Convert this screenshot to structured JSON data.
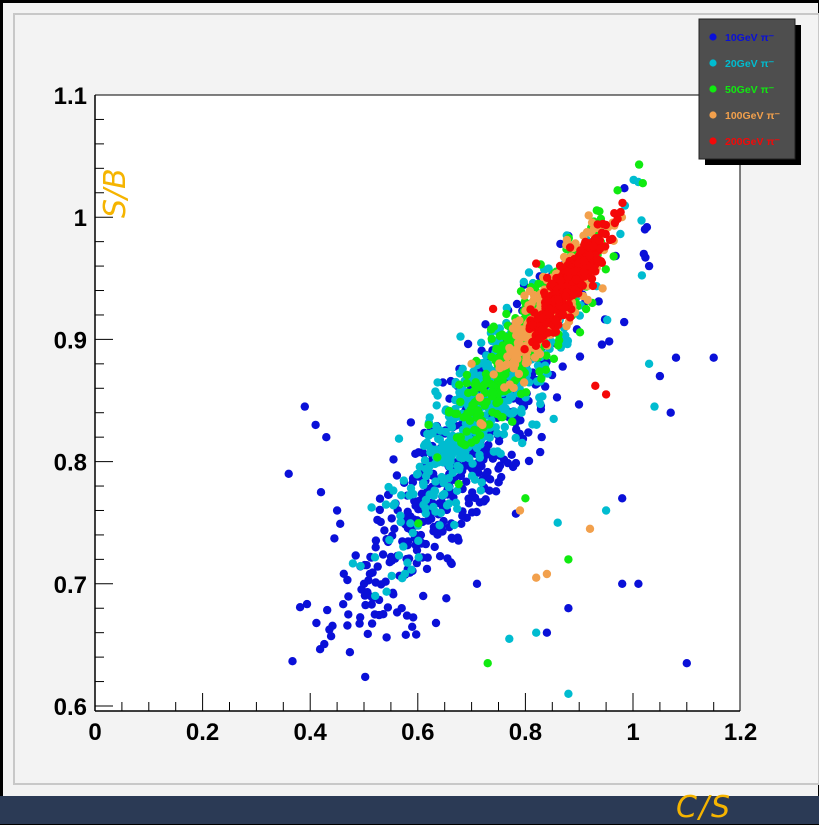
{
  "chart_data": {
    "type": "scatter",
    "xlabel": "C/S",
    "ylabel": "S/B",
    "xlim": [
      0,
      1.2
    ],
    "ylim": [
      0.6,
      1.1
    ],
    "x_ticks": [
      "0",
      "0.2",
      "0.4",
      "0.6",
      "0.8",
      "1",
      "1.2"
    ],
    "y_ticks": [
      "0.6",
      "0.7",
      "0.8",
      "0.9",
      "1",
      "1.1"
    ],
    "legend_position": "top-right",
    "series": [
      {
        "name": "10GeV π⁻",
        "color": "#0a10d8",
        "center": [
          0.69,
          0.81
        ],
        "spread": [
          0.12,
          0.065
        ],
        "core": [
          0.66,
          0.78
        ],
        "n": 520,
        "outliers": [
          [
            0.36,
            0.79
          ],
          [
            0.39,
            0.845
          ],
          [
            0.41,
            0.83
          ],
          [
            0.43,
            0.82
          ],
          [
            0.42,
            0.775
          ],
          [
            0.45,
            0.76
          ],
          [
            0.5,
            0.7
          ],
          [
            0.52,
            0.675
          ],
          [
            0.57,
            0.68
          ],
          [
            0.61,
            0.69
          ],
          [
            0.71,
            0.7
          ],
          [
            0.98,
            0.7
          ],
          [
            1.01,
            0.7
          ],
          [
            0.88,
            0.68
          ],
          [
            0.84,
            0.66
          ],
          [
            1.1,
            0.635
          ],
          [
            1.15,
            0.885
          ],
          [
            1.08,
            0.885
          ],
          [
            1.07,
            0.84
          ],
          [
            1.05,
            0.87
          ],
          [
            1.03,
            0.96
          ],
          [
            1.02,
            0.97
          ],
          [
            0.98,
            0.77
          ]
        ]
      },
      {
        "name": "20GeV π⁻",
        "color": "#00bcd0",
        "center": [
          0.73,
          0.85
        ],
        "spread": [
          0.09,
          0.05
        ],
        "core": [
          0.72,
          0.84
        ],
        "n": 520,
        "outliers": [
          [
            0.88,
            0.61
          ],
          [
            0.77,
            0.655
          ],
          [
            0.82,
            0.66
          ],
          [
            1.04,
            0.845
          ],
          [
            1.03,
            0.88
          ],
          [
            0.95,
            0.76
          ],
          [
            0.86,
            0.75
          ],
          [
            0.6,
            0.79
          ],
          [
            0.62,
            0.83
          ]
        ]
      },
      {
        "name": "50GeV π⁻",
        "color": "#10ea10",
        "center": [
          0.81,
          0.905
        ],
        "spread": [
          0.065,
          0.035
        ],
        "core": [
          0.8,
          0.9
        ],
        "n": 380,
        "outliers": [
          [
            0.73,
            0.635
          ],
          [
            0.88,
            0.72
          ],
          [
            0.62,
            0.83
          ],
          [
            0.72,
            0.86
          ],
          [
            0.68,
            0.82
          ],
          [
            0.8,
            0.77
          ]
        ]
      },
      {
        "name": "100GeV π⁻",
        "color": "#f2a04c",
        "center": [
          0.85,
          0.93
        ],
        "spread": [
          0.045,
          0.025
        ],
        "core": [
          0.84,
          0.925
        ],
        "n": 330,
        "outliers": [
          [
            0.82,
            0.705
          ],
          [
            0.84,
            0.708
          ],
          [
            0.92,
            0.745
          ],
          [
            0.79,
            0.76
          ],
          [
            0.72,
            0.83
          ],
          [
            0.7,
            0.88
          ]
        ]
      },
      {
        "name": "200GeV π⁻",
        "color": "#f40808",
        "center": [
          0.88,
          0.945
        ],
        "spread": [
          0.035,
          0.018
        ],
        "core": [
          0.88,
          0.945
        ],
        "n": 380,
        "outliers": [
          [
            0.93,
            0.862
          ],
          [
            0.95,
            0.855
          ],
          [
            0.74,
            0.925
          ],
          [
            0.82,
            0.962
          ]
        ]
      }
    ]
  }
}
